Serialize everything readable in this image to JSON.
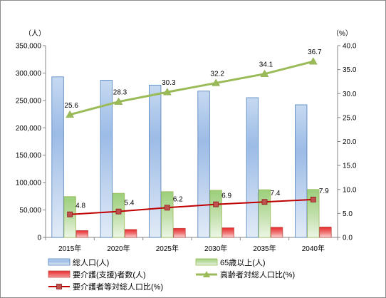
{
  "chart_data": {
    "type": "bar",
    "categories": [
      "2015年",
      "2020年",
      "2025年",
      "2030年",
      "2035年",
      "2040年"
    ],
    "y_left": {
      "unit_label": "（人）",
      "min": 0,
      "max": 350000,
      "step": 50000,
      "ticks": [
        "0",
        "50,000",
        "100,000",
        "150,000",
        "200,000",
        "250,000",
        "300,000",
        "350,000"
      ]
    },
    "y_right": {
      "unit_label": "（%）",
      "min": 0,
      "max": 40,
      "step": 5,
      "ticks": [
        "0.0",
        "5.0",
        "10.0",
        "15.0",
        "20.0",
        "25.0",
        "30.0",
        "35.0",
        "40.0"
      ]
    },
    "grid": false,
    "legend_position": "bottom",
    "series": [
      {
        "name": "総人口(人)",
        "kind": "bar",
        "axis": "left",
        "color": "#4f81bd",
        "values": [
          293000,
          287000,
          278000,
          267000,
          255000,
          242000
        ]
      },
      {
        "name": "65歳以上(人)",
        "kind": "bar",
        "axis": "left",
        "color": "#9bbb59",
        "values": [
          74500,
          80500,
          83500,
          86000,
          87000,
          87500
        ]
      },
      {
        "name": "要介護(支援)者数(人)",
        "kind": "bar",
        "axis": "left",
        "color": "#c0504d",
        "values": [
          12500,
          14500,
          16500,
          17500,
          18500,
          19000
        ]
      },
      {
        "name": "高齢者対総人口比(%)",
        "kind": "line",
        "axis": "right",
        "color": "#9bbb59",
        "marker": "triangle",
        "values": [
          25.6,
          28.3,
          30.3,
          32.2,
          34.1,
          36.7
        ],
        "labels": [
          "25.6",
          "28.3",
          "30.3",
          "32.2",
          "34.1",
          "36.7"
        ]
      },
      {
        "name": "要介護者等対総人口比(%)",
        "kind": "line",
        "axis": "right",
        "color": "#c00000",
        "marker": "square",
        "values": [
          4.8,
          5.4,
          6.2,
          6.9,
          7.4,
          7.9
        ],
        "labels": [
          "4.8",
          "5.4",
          "6.2",
          "6.9",
          "7.4",
          "7.9"
        ]
      }
    ]
  }
}
